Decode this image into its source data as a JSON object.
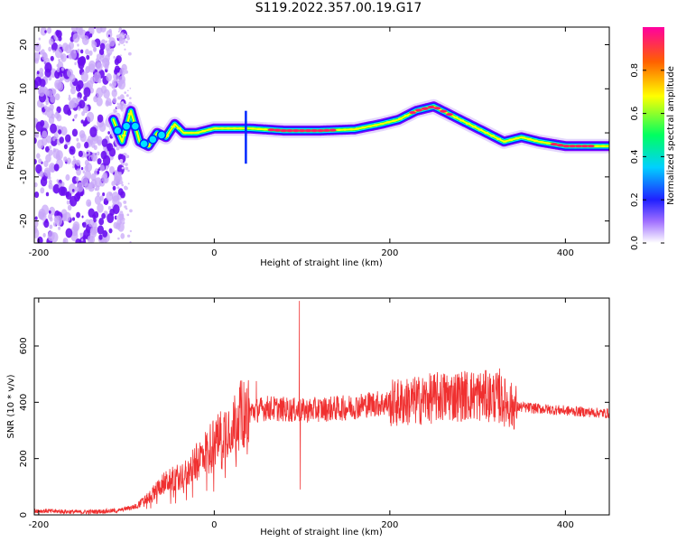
{
  "title": "S119.2022.357.00.19.G17",
  "colors": {
    "snr_line": "#f03030",
    "ridge": [
      "#7a00ff",
      "#0028ff",
      "#00e5ff",
      "#00ff40",
      "#ffff00",
      "#ff2060"
    ],
    "noise": "#8a2be2"
  },
  "chart_data": [
    {
      "type": "heatmap",
      "xlabel": "Height of straight line (km)",
      "ylabel": "Frequency (Hz)",
      "xlim": [
        -205,
        450
      ],
      "ylim": [
        -25,
        24
      ],
      "xticks": [
        -200,
        0,
        200,
        400
      ],
      "yticks": [
        -20,
        -10,
        0,
        10,
        20
      ],
      "colorbar": {
        "label": "Normalized spectral amplitude",
        "range": [
          0,
          1
        ],
        "ticks": [
          0.0,
          0.2,
          0.4,
          0.6,
          0.8
        ],
        "tick_labels": [
          "0.0",
          "0.2",
          "0.4",
          "0.6",
          "0.8"
        ]
      },
      "noise_region_x": [
        -205,
        -110
      ],
      "ridge": {
        "x": [
          -115,
          -105,
          -95,
          -85,
          -75,
          -65,
          -55,
          -45,
          -35,
          -20,
          0,
          20,
          40,
          80,
          120,
          160,
          190,
          210,
          230,
          250,
          270,
          290,
          310,
          330,
          350,
          370,
          400,
          450
        ],
        "y": [
          3,
          -2,
          5,
          -2,
          -3,
          0,
          -1,
          2,
          0,
          0,
          1,
          1,
          1,
          0.5,
          0.5,
          0.8,
          2,
          3,
          5,
          6,
          4,
          2,
          0,
          -2,
          -1,
          -2,
          -3,
          -3
        ]
      }
    },
    {
      "type": "line",
      "xlabel": "Height of straight line (km)",
      "ylabel": "SNR (10 * v/v)",
      "xlim": [
        -205,
        450
      ],
      "ylim": [
        0,
        770
      ],
      "xticks": [
        -200,
        0,
        200,
        400
      ],
      "yticks": [
        0,
        200,
        400,
        600
      ],
      "envelope": {
        "x": [
          -205,
          -150,
          -110,
          -90,
          -75,
          -60,
          -45,
          -30,
          -15,
          0,
          15,
          30,
          45,
          60,
          80,
          100,
          120,
          150,
          180,
          200,
          230,
          260,
          290,
          320,
          340,
          360,
          400,
          450
        ],
        "y": [
          15,
          10,
          15,
          30,
          60,
          110,
          130,
          150,
          210,
          260,
          310,
          355,
          370,
          380,
          375,
          370,
          375,
          380,
          395,
          395,
          405,
          420,
          425,
          420,
          385,
          380,
          370,
          360
        ]
      },
      "spikes": [
        {
          "x": 48,
          "y": 475
        },
        {
          "x": 97,
          "y": 760
        },
        {
          "x": 98,
          "y": 90
        },
        {
          "x": 325,
          "y": 520
        }
      ]
    }
  ]
}
